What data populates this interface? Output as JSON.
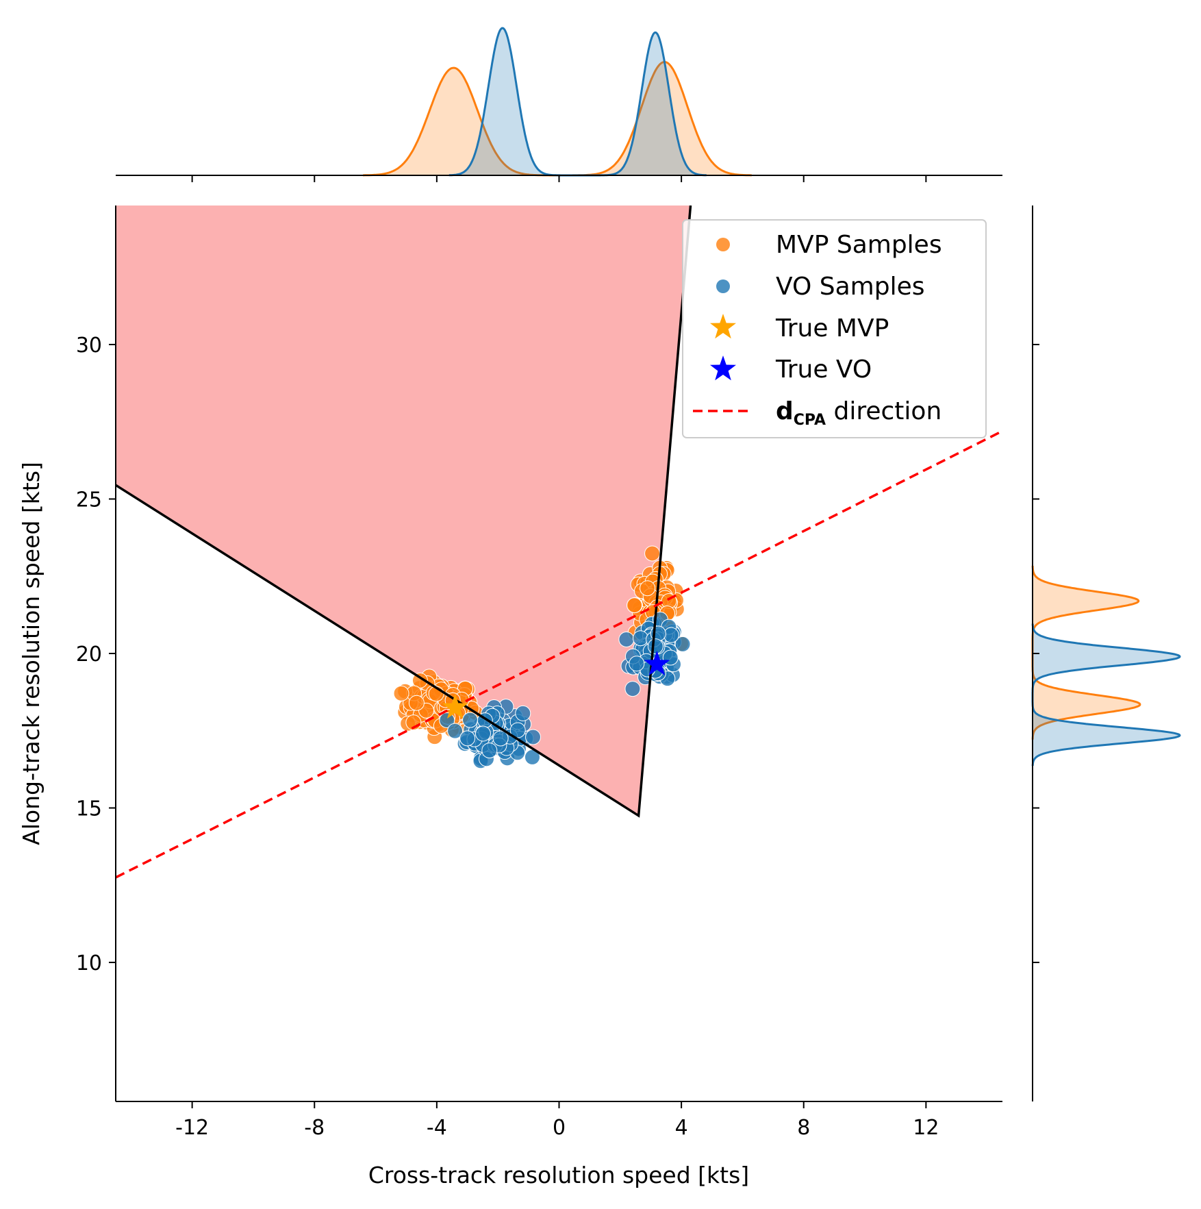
{
  "chart_data": {
    "type": "scatter",
    "xlabel": "Cross-track resolution speed [kts]",
    "ylabel": "Along-track resolution speed [kts]",
    "xlim": [
      -14.5,
      14.5
    ],
    "ylim": [
      5.5,
      34.5
    ],
    "xticks": [
      {
        "value": -12,
        "label": "-12"
      },
      {
        "value": -8,
        "label": "-8"
      },
      {
        "value": -4,
        "label": "-4"
      },
      {
        "value": 0,
        "label": "0"
      },
      {
        "value": 4,
        "label": "4"
      },
      {
        "value": 8,
        "label": "8"
      },
      {
        "value": 12,
        "label": "12"
      }
    ],
    "yticks": [
      {
        "value": 10,
        "label": "10"
      },
      {
        "value": 15,
        "label": "15"
      },
      {
        "value": 20,
        "label": "20"
      },
      {
        "value": 25,
        "label": "25"
      },
      {
        "value": 30,
        "label": "30"
      }
    ],
    "velocity_obstacle_region": {
      "color": "#fcb1b1",
      "apex": [
        2.6,
        14.75
      ],
      "polygon": [
        [
          -14.5,
          34.5
        ],
        [
          -14.5,
          25.45
        ],
        [
          2.6,
          14.75
        ],
        [
          4.3,
          34.5
        ]
      ]
    },
    "dcpa_line": {
      "color": "#ff0000",
      "x": [
        -14.5,
        14.5
      ],
      "y": [
        12.75,
        27.2
      ]
    },
    "clusters": [
      {
        "series": "MVP Samples",
        "center": [
          -3.9,
          18.3
        ],
        "spread": [
          0.55,
          0.38
        ],
        "count": 140
      },
      {
        "series": "VO Samples",
        "center": [
          -2.1,
          17.4
        ],
        "spread": [
          0.45,
          0.38
        ],
        "count": 120
      },
      {
        "series": "MVP Samples",
        "center": [
          3.2,
          21.6
        ],
        "spread": [
          0.35,
          0.5
        ],
        "count": 110
      },
      {
        "series": "VO Samples",
        "center": [
          3.2,
          20.0
        ],
        "spread": [
          0.35,
          0.45
        ],
        "count": 120
      }
    ],
    "series": [
      {
        "name": "MVP Samples",
        "color": "#ff7f0e"
      },
      {
        "name": "VO Samples",
        "color": "#1f77b4"
      }
    ],
    "true_points": [
      {
        "name": "True MVP",
        "x": -3.4,
        "y": 18.25,
        "color": "#ffa500"
      },
      {
        "name": "True VO",
        "x": 3.2,
        "y": 19.65,
        "color": "#0000ff"
      }
    ],
    "marginal_x": {
      "MVP Samples": {
        "components": [
          {
            "mean": -3.45,
            "sd": 0.78,
            "peak": 0.73
          },
          {
            "mean": 3.45,
            "sd": 0.75,
            "peak": 0.77
          }
        ]
      },
      "VO Samples": {
        "components": [
          {
            "mean": -1.85,
            "sd": 0.46,
            "peak": 1.0
          },
          {
            "mean": 3.15,
            "sd": 0.44,
            "peak": 0.97
          }
        ]
      }
    },
    "marginal_y": {
      "MVP Samples": {
        "components": [
          {
            "mean": 21.7,
            "sd": 0.3,
            "peak": 0.72
          },
          {
            "mean": 18.35,
            "sd": 0.3,
            "peak": 0.73
          }
        ]
      },
      "VO Samples": {
        "components": [
          {
            "mean": 19.9,
            "sd": 0.28,
            "peak": 1.0
          },
          {
            "mean": 17.35,
            "sd": 0.26,
            "peak": 1.0
          }
        ]
      }
    },
    "legend": {
      "position": "top-right",
      "entries": [
        {
          "label": "MVP Samples",
          "marker": "circle",
          "color": "#ff7f0e"
        },
        {
          "label": "VO Samples",
          "marker": "circle",
          "color": "#1f77b4"
        },
        {
          "label": "True MVP",
          "marker": "star",
          "color": "#ffa500"
        },
        {
          "label": "True VO",
          "marker": "star",
          "color": "#0000ff"
        },
        {
          "label_bold": "d",
          "label_subscript": "CPA",
          "label_rest": " direction",
          "marker": "dashed-line",
          "color": "#ff0000"
        }
      ]
    }
  }
}
